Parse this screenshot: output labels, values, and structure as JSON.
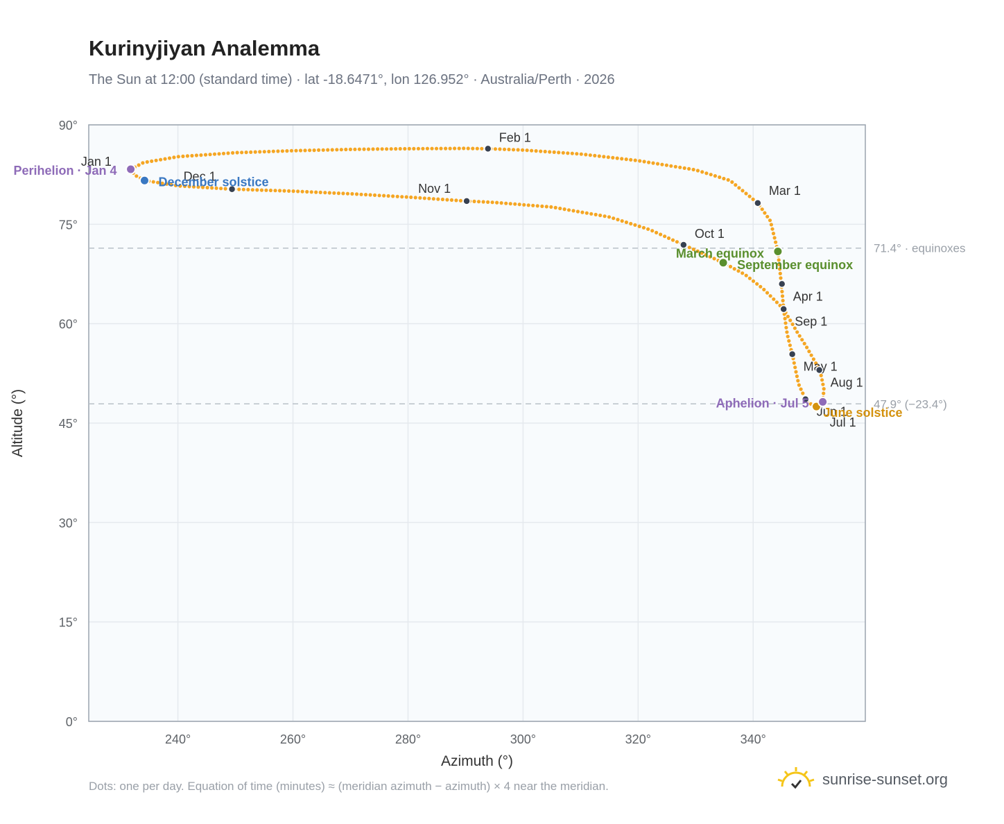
{
  "title": "Kurinyjiyan Analemma",
  "subtitle": "The Sun at 12:00 (standard time) · lat -18.6471°, lon 126.952° · Australia/Perth · 2026",
  "footer_note": "Dots: one per day. Equation of time (minutes) ≈ (meridian azimuth − azimuth) × 4 near the meridian.",
  "brand": {
    "text": "sunrise-sunset.org",
    "icon": "sun-logo-icon"
  },
  "colors": {
    "path": "#f5a623",
    "month_dot": "#374151",
    "perihelion": "#8e6bb8",
    "december_solstice": "#3a78c2",
    "equinox": "#5a8f2e",
    "june_solstice": "#d4920f",
    "aphelion": "#8e6bb8",
    "plot_bg": "#f8fbfd",
    "grid": "#e5e9ee",
    "ref_line": "#b8c0c8"
  },
  "chart_data": {
    "type": "scatter",
    "xlabel": "Azimuth (°)",
    "ylabel": "Altitude (°)",
    "xlim": [
      224.5,
      359.5
    ],
    "ylim": [
      0,
      90
    ],
    "xticks": [
      240,
      260,
      280,
      300,
      320,
      340
    ],
    "xtick_labels": [
      "240°",
      "260°",
      "280°",
      "300°",
      "320°",
      "340°"
    ],
    "yticks": [
      0,
      15,
      30,
      45,
      60,
      75,
      90
    ],
    "ytick_labels": [
      "0°",
      "15°",
      "30°",
      "45°",
      "60°",
      "75°",
      "90°"
    ],
    "grid": true,
    "path_key_points": [
      [
        231.8,
        83.3
      ],
      [
        234,
        84.3
      ],
      [
        240,
        85.2
      ],
      [
        250,
        85.8
      ],
      [
        260,
        86.1
      ],
      [
        270,
        86.3
      ],
      [
        280,
        86.4
      ],
      [
        290,
        86.45
      ],
      [
        294,
        86.4
      ],
      [
        300,
        86.2
      ],
      [
        310,
        85.6
      ],
      [
        320,
        84.6
      ],
      [
        330,
        83.2
      ],
      [
        336,
        81.6
      ],
      [
        340.8,
        78.2
      ],
      [
        343,
        75.5
      ],
      [
        344.3,
        70.9
      ],
      [
        344.9,
        66
      ],
      [
        345.3,
        62.2
      ],
      [
        345.9,
        58.5
      ],
      [
        346.8,
        55.4
      ],
      [
        347.9,
        50.9
      ],
      [
        349.1,
        48.6
      ],
      [
        350.4,
        47.6
      ],
      [
        351.5,
        47.7
      ],
      [
        352.1,
        48.2
      ],
      [
        352.3,
        50.2
      ],
      [
        351.6,
        53
      ],
      [
        349.2,
        56.6
      ],
      [
        347.6,
        58.8
      ],
      [
        345.3,
        62.2
      ],
      [
        341.7,
        65.3
      ],
      [
        338.6,
        67.4
      ],
      [
        334.8,
        69.2
      ],
      [
        327.9,
        71.9
      ],
      [
        322,
        74.2
      ],
      [
        315,
        76.1
      ],
      [
        305,
        77.6
      ],
      [
        295,
        78.3
      ],
      [
        290.2,
        78.5
      ],
      [
        280,
        79.1
      ],
      [
        270,
        79.6
      ],
      [
        260,
        80
      ],
      [
        249.4,
        80.3
      ],
      [
        240,
        80.8
      ],
      [
        234.3,
        81.6
      ],
      [
        232.5,
        82.4
      ],
      [
        231.8,
        83.3
      ]
    ],
    "path_days": 365,
    "months": [
      {
        "label": "Jan 1",
        "az": 231.6,
        "alt": 83.0
      },
      {
        "label": "Feb 1",
        "az": 293.9,
        "alt": 86.4
      },
      {
        "label": "Mar 1",
        "az": 340.8,
        "alt": 78.2
      },
      {
        "label": "Apr 1",
        "az": 345.0,
        "alt": 66.0
      },
      {
        "label": "May 1",
        "az": 346.8,
        "alt": 55.4
      },
      {
        "label": "Jun 1",
        "az": 349.1,
        "alt": 48.6
      },
      {
        "label": "Jul 1",
        "az": 350.9,
        "alt": 47.6
      },
      {
        "label": "Aug 1",
        "az": 351.5,
        "alt": 53.0
      },
      {
        "label": "Sep 1",
        "az": 345.3,
        "alt": 62.2
      },
      {
        "label": "Oct 1",
        "az": 327.9,
        "alt": 71.9
      },
      {
        "label": "Nov 1",
        "az": 290.2,
        "alt": 78.5
      },
      {
        "label": "Dec 1",
        "az": 249.4,
        "alt": 80.3
      }
    ],
    "events": [
      {
        "label": "Perihelion · Jan 4",
        "az": 231.8,
        "alt": 83.3,
        "color_key": "perihelion"
      },
      {
        "label": "December solstice",
        "az": 234.2,
        "alt": 81.6,
        "color_key": "december_solstice"
      },
      {
        "label": "March equinox",
        "az": 344.3,
        "alt": 70.9,
        "color_key": "equinox"
      },
      {
        "label": "September equinox",
        "az": 334.8,
        "alt": 69.2,
        "color_key": "equinox"
      },
      {
        "label": "June solstice",
        "az": 351.0,
        "alt": 47.5,
        "color_key": "june_solstice"
      },
      {
        "label": "Aphelion · Jul 5",
        "az": 352.1,
        "alt": 48.2,
        "color_key": "aphelion"
      }
    ],
    "reference_lines": [
      {
        "alt": 71.4,
        "label": "71.4° · equinoxes"
      },
      {
        "alt": 47.9,
        "label": "47.9° (−23.4°)"
      }
    ]
  }
}
